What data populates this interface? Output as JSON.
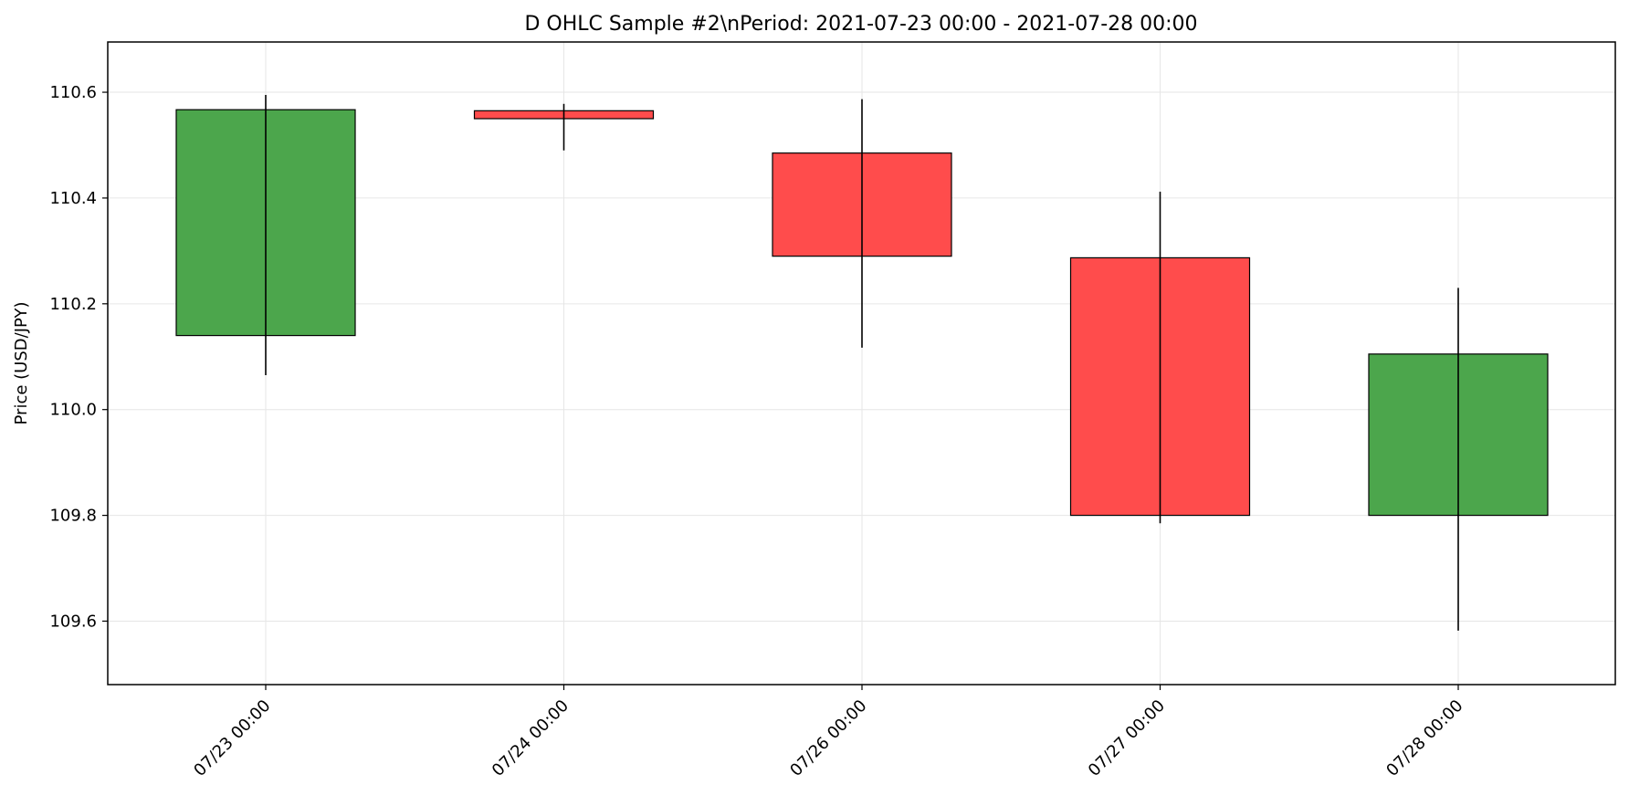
{
  "chart_data": {
    "type": "candlestick",
    "title": "D OHLC Sample #2\\nPeriod: 2021-07-23 00:00 - 2021-07-28 00:00",
    "xlabel": "",
    "ylabel": "Price (USD/JPY)",
    "ylim": [
      109.48,
      110.695
    ],
    "yticks": [
      109.6,
      109.8,
      110.0,
      110.2,
      110.4,
      110.6
    ],
    "ytick_labels": [
      "109.6",
      "109.8",
      "110.0",
      "110.2",
      "110.4",
      "110.6"
    ],
    "grid": true,
    "up_color": "#4ca64c",
    "down_color": "#ff4c4c",
    "categories": [
      "07/23 00:00",
      "07/24 00:00",
      "07/26 00:00",
      "07/27 00:00",
      "07/28 00:00"
    ],
    "candles": [
      {
        "label": "07/23 00:00",
        "open": 110.14,
        "high": 110.595,
        "low": 110.065,
        "close": 110.567
      },
      {
        "label": "07/24 00:00",
        "open": 110.565,
        "high": 110.578,
        "low": 110.49,
        "close": 110.55
      },
      {
        "label": "07/26 00:00",
        "open": 110.485,
        "high": 110.587,
        "low": 110.117,
        "close": 110.29
      },
      {
        "label": "07/27 00:00",
        "open": 110.287,
        "high": 110.412,
        "low": 109.785,
        "close": 109.8
      },
      {
        "label": "07/28 00:00",
        "open": 109.8,
        "high": 110.23,
        "low": 109.582,
        "close": 110.105
      }
    ]
  }
}
